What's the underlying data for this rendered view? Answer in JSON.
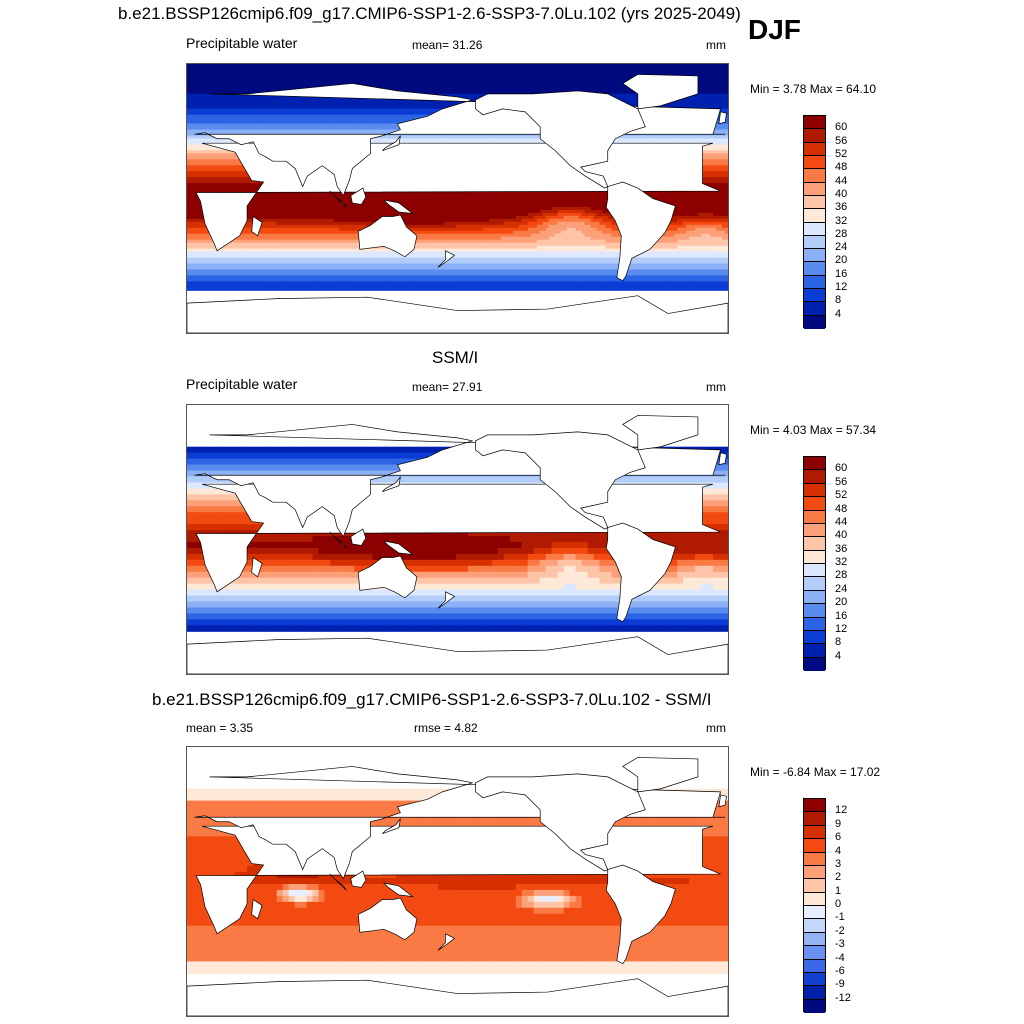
{
  "season": "DJF",
  "panels": [
    {
      "title": "b.e21.BSSP126cmip6.f09_g17.CMIP6-SSP1-2.6-SSP3-7.0Lu.102 (yrs 2025-2049)",
      "left_label": "Precipitable water",
      "center_label": "mean=  31.26",
      "right_label": "mm",
      "minmax": "Min =   3.78 Max =  64.10",
      "colorbar": {
        "labels": [
          "60",
          "56",
          "52",
          "48",
          "44",
          "40",
          "36",
          "32",
          "28",
          "24",
          "20",
          "16",
          "12",
          "8",
          "4"
        ],
        "colors": [
          "#8c0000",
          "#b01a00",
          "#d63000",
          "#f24a10",
          "#fa7a45",
          "#fca07a",
          "#fdc4a8",
          "#fee8d8",
          "#dbe8ff",
          "#b2cdfa",
          "#8cb0f5",
          "#5a8cf0",
          "#2c64e6",
          "#0c3cd6",
          "#0020b0",
          "#000a80"
        ]
      },
      "field": "model"
    },
    {
      "title": "SSM/I",
      "left_label": "Precipitable water",
      "center_label": "mean=  27.91",
      "right_label": "mm",
      "minmax": "Min =   4.03 Max =  57.34",
      "colorbar": {
        "labels": [
          "60",
          "56",
          "52",
          "48",
          "44",
          "40",
          "36",
          "32",
          "28",
          "24",
          "20",
          "16",
          "12",
          "8",
          "4"
        ],
        "colors": [
          "#8c0000",
          "#b01a00",
          "#d63000",
          "#f24a10",
          "#fa7a45",
          "#fca07a",
          "#fdc4a8",
          "#fee8d8",
          "#dbe8ff",
          "#b2cdfa",
          "#8cb0f5",
          "#5a8cf0",
          "#2c64e6",
          "#0c3cd6",
          "#0020b0",
          "#000a80"
        ]
      },
      "field": "obs"
    },
    {
      "title": "b.e21.BSSP126cmip6.f09_g17.CMIP6-SSP1-2.6-SSP3-7.0Lu.102 - SSM/I",
      "left_label": "mean =   3.35",
      "center_label": "rmse =   4.82",
      "right_label": "mm",
      "minmax": "Min =  -6.84 Max =  17.02",
      "colorbar": {
        "labels": [
          "12",
          "9",
          "6",
          "4",
          "3",
          "2",
          "1",
          "0",
          "-1",
          "-2",
          "-3",
          "-4",
          "-6",
          "-9",
          "-12"
        ],
        "colors": [
          "#8c0000",
          "#b01a00",
          "#d63000",
          "#f24a10",
          "#fa7a45",
          "#fca07a",
          "#fdc4a8",
          "#fee8d8",
          "#e8f0ff",
          "#c4d6fa",
          "#94b4f5",
          "#6890f0",
          "#3c68e6",
          "#1440d0",
          "#0020a8",
          "#000a80"
        ]
      },
      "field": "diff"
    }
  ]
}
